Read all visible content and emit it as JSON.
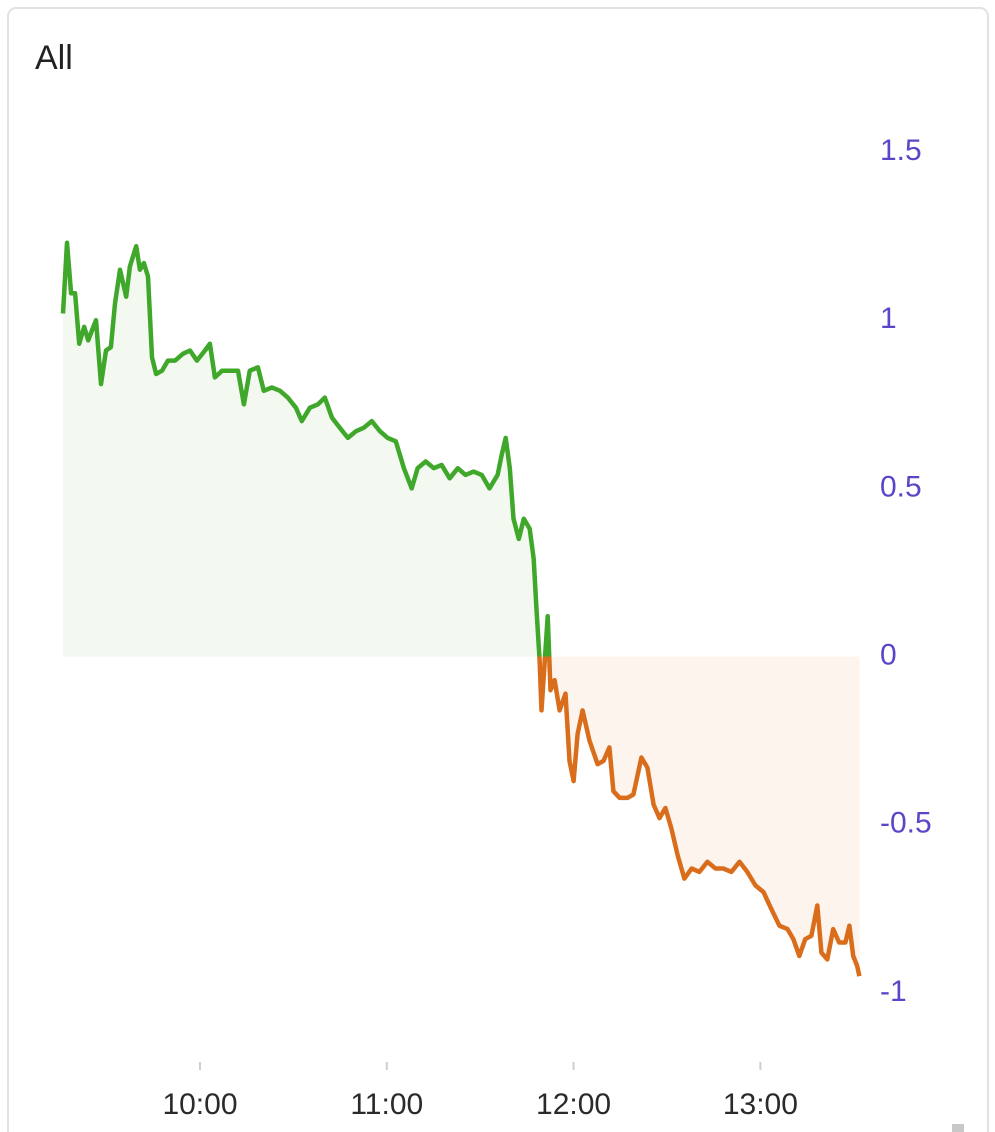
{
  "title": "All",
  "chart_data": {
    "type": "area",
    "x": [
      556.0,
      557.3,
      558.6,
      559.9,
      561.2,
      562.8,
      564.1,
      565.3,
      566.6,
      568.2,
      569.8,
      571.4,
      572.7,
      574.3,
      576.3,
      577.5,
      579.5,
      580.7,
      582.0,
      583.3,
      584.6,
      585.9,
      587.8,
      589.7,
      592.0,
      594.5,
      596.8,
      599.0,
      601.6,
      603.2,
      604.8,
      607.1,
      609.6,
      612.2,
      614.1,
      616.0,
      618.6,
      620.5,
      623.1,
      625.7,
      628.2,
      630.8,
      632.7,
      635.3,
      637.9,
      640.1,
      642.4,
      644.9,
      647.5,
      650.1,
      652.6,
      655.2,
      657.8,
      660.3,
      662.9,
      665.5,
      668.0,
      669.9,
      672.5,
      675.1,
      677.6,
      680.2,
      682.8,
      685.3,
      687.9,
      690.5,
      693.0,
      695.6,
      696.9,
      698.2,
      699.5,
      700.7,
      702.4,
      704.0,
      705.9,
      707.2,
      708.1,
      709.1,
      709.7,
      710.7,
      711.7,
      712.6,
      713.9,
      715.5,
      717.4,
      718.7,
      720.0,
      721.3,
      722.9,
      725.1,
      727.7,
      729.6,
      731.5,
      732.8,
      734.8,
      737.3,
      739.2,
      741.8,
      743.7,
      745.7,
      747.6,
      749.5,
      751.4,
      753.4,
      755.6,
      757.9,
      760.4,
      763.0,
      765.6,
      768.1,
      770.7,
      773.3,
      775.8,
      778.4,
      781.0,
      783.5,
      786.1,
      788.7,
      790.6,
      792.5,
      794.4,
      796.4,
      798.3,
      799.6,
      801.5,
      803.4,
      805.3,
      807.3,
      808.6,
      809.8,
      811.1,
      811.8
    ],
    "values": [
      1.02,
      1.23,
      1.08,
      1.08,
      0.93,
      0.98,
      0.94,
      0.97,
      1.0,
      0.81,
      0.91,
      0.92,
      1.05,
      1.15,
      1.07,
      1.16,
      1.22,
      1.15,
      1.17,
      1.13,
      0.89,
      0.84,
      0.85,
      0.88,
      0.88,
      0.9,
      0.91,
      0.88,
      0.91,
      0.93,
      0.83,
      0.85,
      0.85,
      0.85,
      0.75,
      0.85,
      0.86,
      0.79,
      0.8,
      0.79,
      0.77,
      0.74,
      0.7,
      0.74,
      0.75,
      0.77,
      0.71,
      0.68,
      0.65,
      0.67,
      0.68,
      0.7,
      0.67,
      0.65,
      0.64,
      0.56,
      0.5,
      0.56,
      0.58,
      0.56,
      0.57,
      0.53,
      0.56,
      0.54,
      0.55,
      0.54,
      0.5,
      0.54,
      0.6,
      0.65,
      0.56,
      0.41,
      0.35,
      0.41,
      0.38,
      0.29,
      0.14,
      -0.01,
      -0.16,
      -0.02,
      0.12,
      -0.1,
      -0.07,
      -0.16,
      -0.11,
      -0.31,
      -0.37,
      -0.23,
      -0.16,
      -0.25,
      -0.32,
      -0.31,
      -0.27,
      -0.4,
      -0.42,
      -0.42,
      -0.41,
      -0.3,
      -0.33,
      -0.44,
      -0.48,
      -0.45,
      -0.51,
      -0.59,
      -0.66,
      -0.63,
      -0.64,
      -0.61,
      -0.63,
      -0.63,
      -0.64,
      -0.61,
      -0.64,
      -0.68,
      -0.7,
      -0.75,
      -0.8,
      -0.81,
      -0.84,
      -0.89,
      -0.84,
      -0.83,
      -0.74,
      -0.88,
      -0.9,
      -0.81,
      -0.85,
      -0.85,
      -0.8,
      -0.89,
      -0.92,
      -0.95
    ],
    "colors": {
      "positive": "#3fa72a",
      "negative": "#d96d1b"
    },
    "fill_colors": {
      "positive": "#f3f8f0",
      "negative": "#fcf4ed"
    },
    "xlim": [
      556,
      812
    ],
    "xticks": [
      {
        "value": 600,
        "label": "10:00"
      },
      {
        "value": 660,
        "label": "11:00"
      },
      {
        "value": 720,
        "label": "12:00"
      },
      {
        "value": 780,
        "label": "13:00"
      }
    ],
    "ylim": [
      -1,
      1.5
    ],
    "yticks": [
      1.5,
      1,
      0.5,
      0,
      -0.5,
      -1
    ],
    "y_axis_side": "right",
    "tick_label_color": "#5b45c8"
  }
}
